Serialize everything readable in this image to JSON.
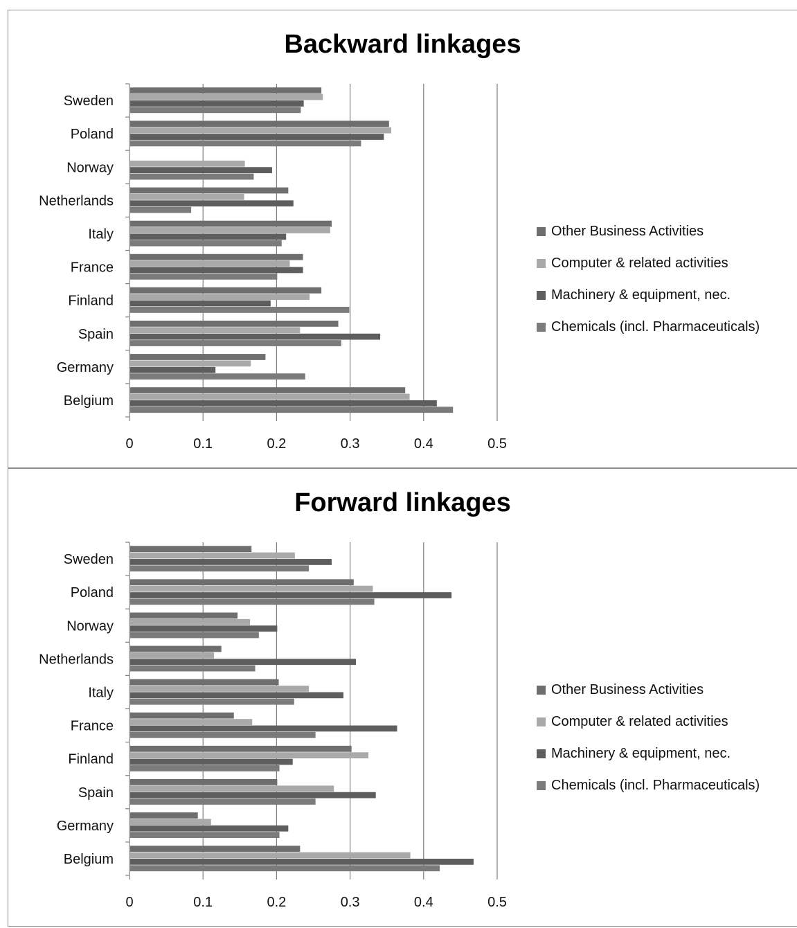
{
  "chart_data": [
    {
      "type": "bar",
      "orientation": "horizontal",
      "title": "Backward linkages",
      "categories": [
        "Sweden",
        "Poland",
        "Norway",
        "Netherlands",
        "Italy",
        "France",
        "Finland",
        "Spain",
        "Germany",
        "Belgium"
      ],
      "series": [
        {
          "name": "Other Business Activities",
          "color": "#6e6e6e",
          "values": [
            0.26,
            0.352,
            0.0,
            0.215,
            0.274,
            0.235,
            0.26,
            0.283,
            0.184,
            0.374
          ]
        },
        {
          "name": "Computer & related activities",
          "color": "#a9a9a9",
          "values": [
            0.262,
            0.355,
            0.156,
            0.155,
            0.272,
            0.217,
            0.244,
            0.231,
            0.164,
            0.38
          ]
        },
        {
          "name": "Machinery & equipment, nec.",
          "color": "#5e5e5e",
          "values": [
            0.236,
            0.345,
            0.193,
            0.222,
            0.212,
            0.235,
            0.191,
            0.34,
            0.116,
            0.417
          ]
        },
        {
          "name": "Chemicals (incl. Pharmaceuticals)",
          "color": "#7b7b7b",
          "values": [
            0.232,
            0.314,
            0.168,
            0.083,
            0.206,
            0.2,
            0.298,
            0.287,
            0.238,
            0.439
          ]
        }
      ],
      "xlim": [
        0,
        0.5
      ],
      "xticks": [
        "0",
        "0.1",
        "0.2",
        "0.3",
        "0.4",
        "0.5"
      ],
      "grid": true,
      "legend_position": "right"
    },
    {
      "type": "bar",
      "orientation": "horizontal",
      "title": "Forward linkages",
      "categories": [
        "Sweden",
        "Poland",
        "Norway",
        "Netherlands",
        "Italy",
        "France",
        "Finland",
        "Spain",
        "Germany",
        "Belgium"
      ],
      "series": [
        {
          "name": "Other Business Activities",
          "color": "#6e6e6e",
          "values": [
            0.165,
            0.304,
            0.146,
            0.124,
            0.202,
            0.141,
            0.301,
            0.2,
            0.092,
            0.231
          ]
        },
        {
          "name": "Computer & related activities",
          "color": "#a9a9a9",
          "values": [
            0.224,
            0.33,
            0.163,
            0.114,
            0.243,
            0.166,
            0.324,
            0.277,
            0.11,
            0.381
          ]
        },
        {
          "name": "Machinery & equipment, nec.",
          "color": "#5e5e5e",
          "values": [
            0.274,
            0.437,
            0.2,
            0.307,
            0.29,
            0.363,
            0.221,
            0.334,
            0.215,
            0.467
          ]
        },
        {
          "name": "Chemicals (incl. Pharmaceuticals)",
          "color": "#7b7b7b",
          "values": [
            0.243,
            0.332,
            0.175,
            0.17,
            0.223,
            0.252,
            0.203,
            0.252,
            0.203,
            0.421
          ]
        }
      ],
      "xlim": [
        0,
        0.5
      ],
      "xticks": [
        "0",
        "0.1",
        "0.2",
        "0.3",
        "0.4",
        "0.5"
      ],
      "grid": true,
      "legend_position": "right"
    }
  ]
}
